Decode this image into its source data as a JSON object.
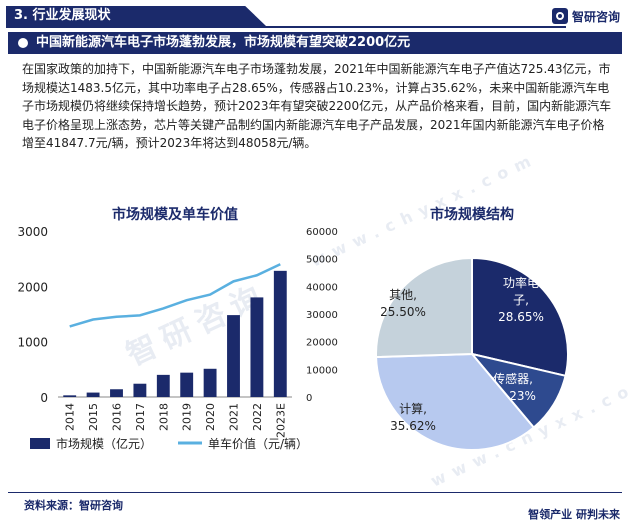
{
  "header": {
    "section_title": "3. 行业发展现状",
    "brand": "智研咨询",
    "headline": "中国新能源汽车电子市场蓬勃发展，市场规模有望突破2200亿元"
  },
  "body_text": "在国家政策的加持下，中国新能源汽车电子市场蓬勃发展，2021年中国新能源汽车电子产值达725.43亿元，市场规模达1483.5亿元，其中功率电子占28.65%，传感器占10.23%，计算占35.62%，未来中国新能源汽车电子市场规模仍将继续保持增长趋势，预计2023年有望突破2200亿元，从产品价格来看，目前，国内新能源汽车电子价格呈现上涨态势，芯片等关键产品制约国内新能源汽车电子产品发展，2021年国内新能源汽车电子价格增至41847.7元/辆，预计2023年将达到48058元/辆。",
  "watermark": {
    "cn": "智研咨询",
    "en": "www.chyxx.com"
  },
  "footer": {
    "source": "资料来源：智研咨询",
    "slogan": "智领产业  研判未来"
  },
  "chart_data": [
    {
      "type": "bar",
      "title": "市场规模及单车价值",
      "categories": [
        "2014",
        "2015",
        "2016",
        "2017",
        "2018",
        "2019",
        "2020",
        "2021",
        "2022",
        "2023E"
      ],
      "series": [
        {
          "name": "市场规模（亿元）",
          "type": "bar",
          "axis": "left",
          "values": [
            30,
            80,
            140,
            240,
            400,
            440,
            510,
            1480,
            1800,
            2280
          ]
        },
        {
          "name": "单车价值（元/辆）",
          "type": "line",
          "axis": "right",
          "values": [
            25500,
            28000,
            29000,
            29500,
            32000,
            35000,
            37000,
            41800,
            44000,
            48000
          ]
        }
      ],
      "y_left": {
        "ylim": [
          0,
          3000
        ],
        "ticks": [
          0,
          1000,
          2000,
          3000
        ]
      },
      "y_right": {
        "ylim": [
          0,
          60000
        ],
        "ticks": [
          0,
          10000,
          20000,
          30000,
          40000,
          50000,
          60000
        ]
      },
      "legend": "bottom",
      "grid": false,
      "colors": {
        "bar": "#1b2a6b",
        "line": "#5ab0e0"
      }
    },
    {
      "type": "pie",
      "title": "市场规模结构",
      "slices": [
        {
          "label": "功率电子",
          "value": 28.65,
          "value_label": "28.65%",
          "color": "#1b2a6b",
          "label_lines": [
            "功率电",
            "子,",
            "28.65%"
          ]
        },
        {
          "label": "传感器",
          "value": 10.23,
          "value_label": "10.23%",
          "color": "#2e4a8f",
          "label_lines": [
            "传感器,",
            "10.23%"
          ]
        },
        {
          "label": "计算",
          "value": 35.62,
          "value_label": "35.62%",
          "color": "#b7c9ef",
          "label_lines": [
            "计算,",
            "35.62%"
          ]
        },
        {
          "label": "其他",
          "value": 25.5,
          "value_label": "25.50%",
          "color": "#c5d2db",
          "label_lines": [
            "其他,",
            "25.50%"
          ]
        }
      ]
    }
  ]
}
